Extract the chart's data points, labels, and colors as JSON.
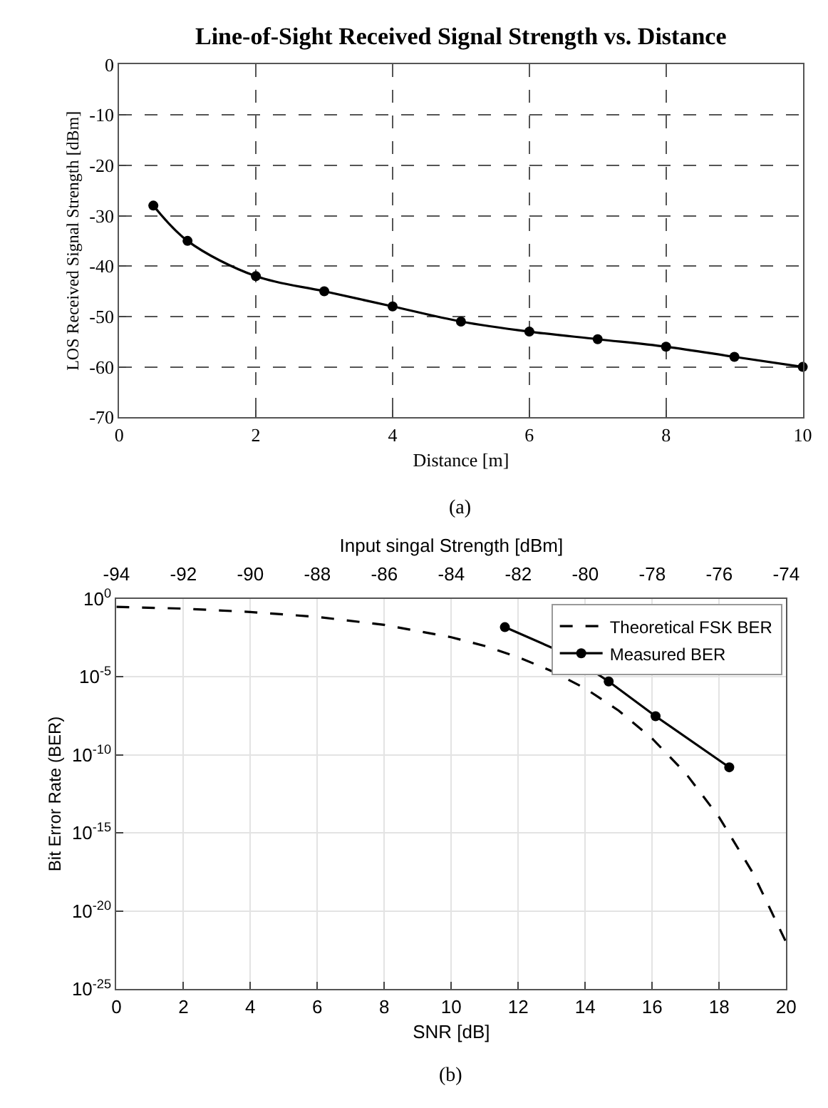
{
  "chart_data": [
    {
      "type": "line",
      "title": "Line-of-Sight Received Signal Strength vs. Distance",
      "xlabel": "Distance [m]",
      "ylabel": "LOS Received Signal Strength [dBm]",
      "annotations": [
        "(a)"
      ],
      "x": [
        0.5,
        1,
        2,
        3,
        4,
        5,
        6,
        7,
        8,
        9,
        10
      ],
      "series": [
        {
          "color": "#000000",
          "values": [
            -28,
            -35,
            -42,
            -45,
            -48,
            -51,
            -53,
            -54.5,
            -56,
            -58,
            -60
          ]
        }
      ],
      "xlim": [
        0,
        10
      ],
      "xticks": [
        0,
        2,
        4,
        6,
        8,
        10
      ],
      "ylim": [
        -70,
        0
      ],
      "yticks": [
        0,
        -10,
        -20,
        -30,
        -40,
        -50,
        -60,
        -70
      ],
      "grid": true,
      "marker": "circle",
      "line_style": "solid",
      "legend": false
    },
    {
      "type": "line",
      "xlabel": "SNR [dB]",
      "ylabel": "Bit Error Rate (BER)",
      "x2label": "Input singal Strength [dBm]",
      "annotations": [
        "(b)"
      ],
      "series": [
        {
          "name": "Theoretical FSK BER",
          "color": "#000000",
          "marker": "none",
          "line_style": "dashed",
          "x": [
            0,
            2,
            4,
            6,
            8,
            10,
            11,
            12,
            13,
            14,
            15,
            16,
            17,
            18,
            19,
            20
          ],
          "values": [
            0.3,
            0.23,
            0.14,
            0.068,
            0.021,
            0.0034,
            0.00093,
            0.00018,
            2.3e-05,
            1.8e-06,
            6.8e-08,
            1.1e-09,
            6.6e-12,
            1e-14,
            2.9e-18,
            1e-22
          ]
        },
        {
          "name": "Measured BER",
          "color": "#000000",
          "marker": "circle",
          "line_style": "solid",
          "x": [
            11.6,
            13.5,
            14.7,
            16.1,
            18.3
          ],
          "values": [
            0.015,
            0.00025,
            5e-06,
            3e-08,
            1.6e-11
          ]
        }
      ],
      "xlim": [
        0,
        20
      ],
      "xticks": [
        0,
        2,
        4,
        6,
        8,
        10,
        12,
        14,
        16,
        18,
        20
      ],
      "x2lim": [
        -94,
        -74
      ],
      "x2ticks": [
        -94,
        -92,
        -90,
        -88,
        -86,
        -84,
        -82,
        -80,
        -78,
        -76,
        -74
      ],
      "ylim": [
        1e-25,
        1
      ],
      "log": "y",
      "yticks": [
        {
          "value": 1,
          "label": "10$^{0}$"
        },
        {
          "value": 1e-05,
          "label": "10$^{-5}$"
        },
        {
          "value": 1e-10,
          "label": "10$^{-10}$"
        },
        {
          "value": 1e-15,
          "label": "10$^{-15}$"
        },
        {
          "value": 1e-20,
          "label": "10$^{-20}$"
        },
        {
          "value": 1e-25,
          "label": "10$^{-25}$"
        }
      ],
      "grid": true,
      "legend": "top right"
    }
  ]
}
